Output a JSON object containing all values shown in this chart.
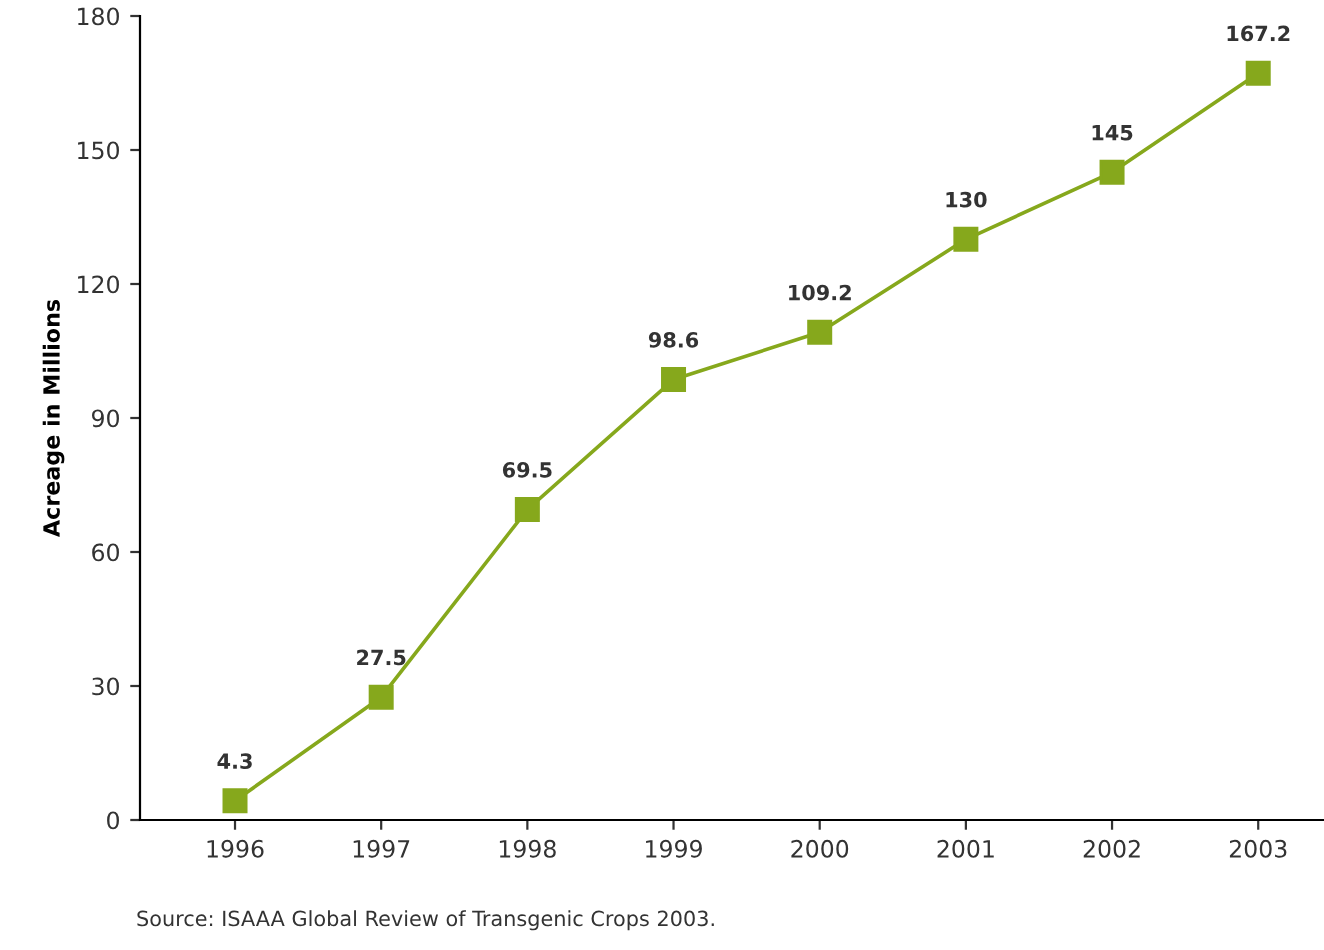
{
  "chart_data": {
    "type": "line",
    "ylabel": "Acreage in Millions",
    "categories": [
      "1996",
      "1997",
      "1998",
      "1999",
      "2000",
      "2001",
      "2002",
      "2003"
    ],
    "series": [
      {
        "color": "#86a81c",
        "values": [
          4.3,
          27.5,
          69.5,
          98.6,
          109.2,
          130,
          145,
          167.2
        ]
      }
    ],
    "ylim": [
      0,
      180
    ],
    "yticks": [
      0,
      30,
      60,
      90,
      120,
      150,
      180
    ],
    "marker": "square",
    "line_style": "solid",
    "data_labels": true,
    "grid": false,
    "legend": false,
    "annotations": [
      "Source: ISAAA Global Review of Transgenic Crops 2003."
    ]
  }
}
